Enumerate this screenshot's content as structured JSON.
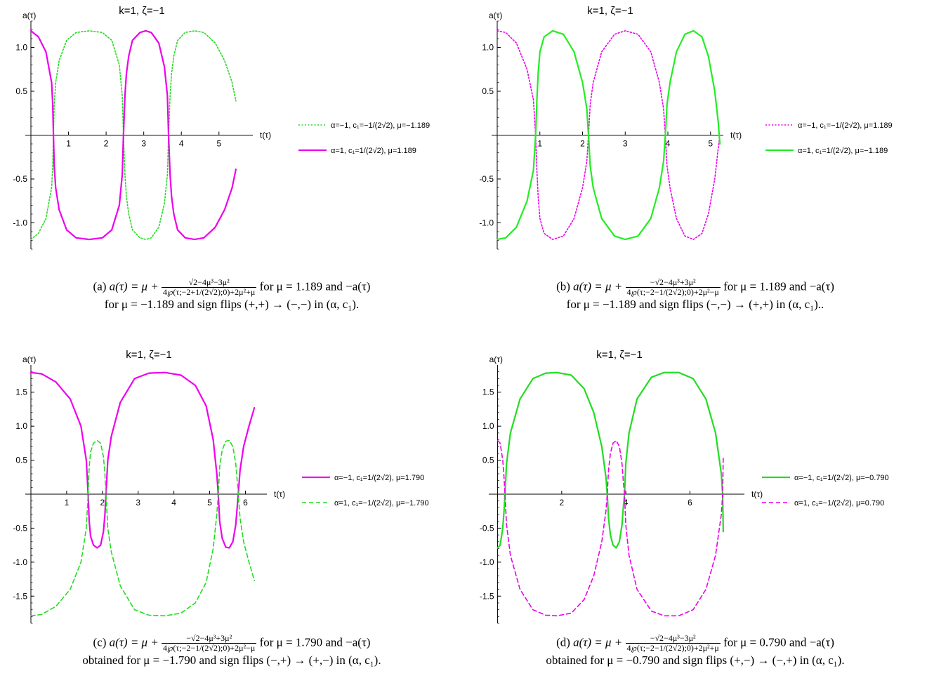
{
  "chart_data": [
    {
      "type": "line",
      "title": "k=1, ζ=−1",
      "ylabel": "a(τ)",
      "xlabel": "t(τ)",
      "xlim": [
        0,
        5.9
      ],
      "ylim": [
        -1.3,
        1.3
      ],
      "xticks": [
        "1",
        "2",
        "3",
        "4",
        "5"
      ],
      "yticks": [
        "-1.0",
        "-0.5",
        "0.5",
        "1.0"
      ],
      "ytick_values": [
        -1.0,
        -0.5,
        0.5,
        1.0
      ],
      "xtick_values": [
        1,
        2,
        3,
        4,
        5
      ],
      "series": [
        {
          "legend_text": "α=−1, c₁=−1/(2√2), μ=−1.189",
          "color": "#22dd22",
          "style": "dotted",
          "x": [
            0,
            0.2,
            0.4,
            0.55,
            0.58,
            0.6,
            0.62,
            0.66,
            0.75,
            0.95,
            1.2,
            1.55,
            1.9,
            2.15,
            2.35,
            2.43,
            2.46,
            2.5,
            2.54,
            2.6,
            2.7,
            2.9,
            3.05,
            3.2,
            3.4,
            3.55,
            3.63,
            3.66,
            3.7,
            3.74,
            3.8,
            3.9,
            4.1,
            4.35,
            4.6,
            4.9,
            5.15,
            5.35,
            5.45
          ],
          "y": [
            -1.189,
            -1.12,
            -0.95,
            -0.6,
            -0.35,
            0,
            0.35,
            0.6,
            0.85,
            1.08,
            1.17,
            1.189,
            1.17,
            1.08,
            0.8,
            0.45,
            0,
            -0.45,
            -0.7,
            -0.9,
            -1.08,
            -1.17,
            -1.189,
            -1.17,
            -1.05,
            -0.78,
            -0.45,
            0,
            0.45,
            0.7,
            0.9,
            1.08,
            1.17,
            1.189,
            1.17,
            1.05,
            0.85,
            0.6,
            0.39
          ]
        },
        {
          "legend_text": "α=1, c₁=1/(2√2), μ=1.189",
          "color": "#ee00ee",
          "style": "solid",
          "x": [
            0,
            0.2,
            0.4,
            0.55,
            0.58,
            0.6,
            0.62,
            0.66,
            0.75,
            0.95,
            1.2,
            1.55,
            1.9,
            2.15,
            2.35,
            2.43,
            2.46,
            2.5,
            2.54,
            2.6,
            2.7,
            2.9,
            3.05,
            3.2,
            3.4,
            3.55,
            3.63,
            3.66,
            3.7,
            3.74,
            3.8,
            3.9,
            4.1,
            4.35,
            4.6,
            4.9,
            5.15,
            5.35,
            5.45
          ],
          "y": [
            1.189,
            1.12,
            0.95,
            0.6,
            0.35,
            0,
            -0.35,
            -0.6,
            -0.85,
            -1.08,
            -1.17,
            -1.189,
            -1.17,
            -1.08,
            -0.8,
            -0.45,
            0,
            0.45,
            0.7,
            0.9,
            1.08,
            1.17,
            1.189,
            1.17,
            1.05,
            0.78,
            0.45,
            0,
            -0.45,
            -0.7,
            -0.9,
            -1.08,
            -1.17,
            -1.189,
            -1.17,
            -1.05,
            -0.85,
            -0.6,
            -0.39
          ]
        }
      ],
      "legend_placement": "right"
    },
    {
      "type": "line",
      "title": "k=1, ζ=−1",
      "ylabel": "a(τ)",
      "xlabel": "t(τ)",
      "xlim": [
        0,
        5.3
      ],
      "ylim": [
        -1.3,
        1.3
      ],
      "xticks": [
        "1",
        "2",
        "3",
        "4",
        "5"
      ],
      "yticks": [
        "-1.0",
        "-0.5",
        "0.5",
        "1.0"
      ],
      "ytick_values": [
        -1.0,
        -0.5,
        0.5,
        1.0
      ],
      "xtick_values": [
        1,
        2,
        3,
        4,
        5
      ],
      "series": [
        {
          "legend_text": "α=−1, c₁=−1/(2√2), μ=1.189",
          "color": "#ee00ee",
          "style": "dotted",
          "x": [
            0,
            0.2,
            0.45,
            0.7,
            0.85,
            0.9,
            0.93,
            0.96,
            1.0,
            1.1,
            1.3,
            1.55,
            1.8,
            2.0,
            2.1,
            2.14,
            2.18,
            2.25,
            2.45,
            2.75,
            3.0,
            3.3,
            3.6,
            3.8,
            3.9,
            3.94,
            3.98,
            4.05,
            4.2,
            4.4,
            4.6,
            4.8,
            4.95,
            5.1,
            5.18,
            5.22
          ],
          "y": [
            1.189,
            1.17,
            1.05,
            0.75,
            0.4,
            0,
            -0.4,
            -0.7,
            -0.95,
            -1.12,
            -1.189,
            -1.15,
            -0.95,
            -0.6,
            -0.3,
            0,
            0.35,
            0.6,
            0.95,
            1.15,
            1.189,
            1.15,
            0.95,
            0.6,
            0.3,
            0,
            -0.35,
            -0.6,
            -0.95,
            -1.15,
            -1.189,
            -1.12,
            -0.9,
            -0.5,
            -0.15,
            0
          ]
        },
        {
          "legend_text": "α=1, c₁=1/(2√2), μ=−1.189",
          "color": "#22ee22",
          "style": "solid",
          "x": [
            0,
            0.2,
            0.45,
            0.7,
            0.85,
            0.9,
            0.93,
            0.96,
            1.0,
            1.1,
            1.3,
            1.55,
            1.8,
            2.0,
            2.1,
            2.14,
            2.18,
            2.25,
            2.45,
            2.75,
            3.0,
            3.3,
            3.6,
            3.8,
            3.9,
            3.94,
            3.98,
            4.05,
            4.2,
            4.4,
            4.6,
            4.8,
            4.95,
            5.1,
            5.18,
            5.22
          ],
          "y": [
            -1.189,
            -1.17,
            -1.05,
            -0.75,
            -0.4,
            0,
            0.4,
            0.7,
            0.95,
            1.12,
            1.189,
            1.15,
            0.95,
            0.6,
            0.3,
            0,
            -0.35,
            -0.6,
            -0.95,
            -1.15,
            -1.189,
            -1.15,
            -0.95,
            -0.6,
            -0.3,
            0,
            0.35,
            0.6,
            0.95,
            1.15,
            1.189,
            1.12,
            0.9,
            0.5,
            0.15,
            -0.1
          ]
        }
      ],
      "legend_placement": "right"
    },
    {
      "type": "line",
      "title": "k=1, ζ=−1",
      "ylabel": "a(τ)",
      "xlabel": "t(τ)",
      "xlim": [
        0,
        6.6
      ],
      "ylim": [
        -1.9,
        1.9
      ],
      "xticks": [
        "1",
        "2",
        "3",
        "4",
        "5",
        "6"
      ],
      "yticks": [
        "-1.5",
        "-1.0",
        "-0.5",
        "0.5",
        "1.0",
        "1.5"
      ],
      "ytick_values": [
        -1.5,
        -1.0,
        -0.5,
        0.5,
        1.0,
        1.5
      ],
      "xtick_values": [
        1,
        2,
        3,
        4,
        5,
        6
      ],
      "series": [
        {
          "legend_text": "α=−1, c₁=1/(2√2), μ=1.790",
          "color": "#ee00ee",
          "style": "solid",
          "x": [
            0,
            0.3,
            0.7,
            1.1,
            1.4,
            1.55,
            1.6,
            1.63,
            1.67,
            1.75,
            1.85,
            1.95,
            2.03,
            2.07,
            2.1,
            2.15,
            2.25,
            2.5,
            2.9,
            3.3,
            3.75,
            4.2,
            4.6,
            4.9,
            5.1,
            5.2,
            5.24,
            5.28,
            5.35,
            5.45,
            5.55,
            5.65,
            5.73,
            5.77,
            5.8,
            5.85,
            5.95,
            6.1,
            6.25
          ],
          "y": [
            1.79,
            1.77,
            1.65,
            1.4,
            1.0,
            0.5,
            0,
            -0.4,
            -0.62,
            -0.75,
            -0.79,
            -0.75,
            -0.55,
            -0.3,
            0,
            0.5,
            0.85,
            1.35,
            1.7,
            1.78,
            1.79,
            1.75,
            1.6,
            1.3,
            0.8,
            0.3,
            0,
            -0.4,
            -0.65,
            -0.78,
            -0.79,
            -0.7,
            -0.45,
            -0.2,
            0,
            0.35,
            0.7,
            1.0,
            1.27
          ]
        },
        {
          "legend_text": "α=1, c₁=−1/(2√2), μ=−1.790",
          "color": "#22dd22",
          "style": "dashed",
          "x": [
            0,
            0.3,
            0.7,
            1.1,
            1.4,
            1.55,
            1.6,
            1.63,
            1.67,
            1.75,
            1.85,
            1.95,
            2.03,
            2.07,
            2.1,
            2.15,
            2.25,
            2.5,
            2.9,
            3.3,
            3.75,
            4.2,
            4.6,
            4.9,
            5.1,
            5.2,
            5.24,
            5.28,
            5.35,
            5.45,
            5.55,
            5.65,
            5.73,
            5.77,
            5.8,
            5.85,
            5.95,
            6.1,
            6.25
          ],
          "y": [
            -1.79,
            -1.77,
            -1.65,
            -1.4,
            -1.0,
            -0.5,
            0,
            0.4,
            0.62,
            0.75,
            0.79,
            0.75,
            0.55,
            0.3,
            0,
            -0.5,
            -0.85,
            -1.35,
            -1.7,
            -1.78,
            -1.79,
            -1.75,
            -1.6,
            -1.3,
            -0.8,
            -0.3,
            0,
            0.4,
            0.65,
            0.78,
            0.79,
            0.7,
            0.45,
            0.2,
            0,
            -0.35,
            -0.7,
            -1.0,
            -1.27
          ]
        }
      ],
      "legend_placement": "right"
    },
    {
      "type": "line",
      "title": "k=1, ζ=−1",
      "ylabel": "a(τ)",
      "xlabel": "t(τ)",
      "xlim": [
        -0.1,
        7.7
      ],
      "ylim": [
        -1.9,
        1.9
      ],
      "xticks": [
        "2",
        "4",
        "6"
      ],
      "yticks": [
        "-1.5",
        "-1.0",
        "-0.5",
        "0.5",
        "1.0",
        "1.5"
      ],
      "ytick_values": [
        -1.5,
        -1.0,
        -0.5,
        0.5,
        1.0,
        1.5
      ],
      "xtick_values": [
        2,
        4,
        6
      ],
      "series": [
        {
          "legend_text": "α=−1, c₁=1/(2√2), μ=−0.790",
          "color": "#22dd22",
          "style": "solid",
          "x": [
            0,
            0.08,
            0.16,
            0.2,
            0.23,
            0.28,
            0.4,
            0.7,
            1.1,
            1.5,
            1.85,
            2.3,
            2.7,
            3.0,
            3.25,
            3.38,
            3.42,
            3.46,
            3.52,
            3.6,
            3.7,
            3.8,
            3.88,
            3.92,
            3.96,
            4.0,
            4.1,
            4.35,
            4.8,
            5.2,
            5.65,
            6.1,
            6.5,
            6.8,
            6.98,
            7.02,
            7.04
          ],
          "y": [
            -0.79,
            -0.75,
            -0.5,
            -0.25,
            0,
            0.45,
            0.9,
            1.4,
            1.7,
            1.78,
            1.79,
            1.75,
            1.55,
            1.2,
            0.7,
            0.25,
            0,
            -0.35,
            -0.6,
            -0.75,
            -0.79,
            -0.7,
            -0.45,
            -0.2,
            0,
            0.45,
            0.9,
            1.4,
            1.72,
            1.79,
            1.79,
            1.7,
            1.4,
            0.9,
            0.3,
            0,
            -0.55
          ]
        },
        {
          "legend_text": "α=1, c₁=−1/(2√2), μ=0.790",
          "color": "#ee00ee",
          "style": "dashed",
          "x": [
            0,
            0.08,
            0.16,
            0.2,
            0.23,
            0.28,
            0.4,
            0.7,
            1.1,
            1.5,
            1.85,
            2.3,
            2.7,
            3.0,
            3.25,
            3.38,
            3.42,
            3.46,
            3.52,
            3.6,
            3.7,
            3.8,
            3.88,
            3.92,
            3.96,
            4.0,
            4.1,
            4.35,
            4.8,
            5.2,
            5.65,
            6.1,
            6.5,
            6.8,
            6.98,
            7.02,
            7.04
          ],
          "y": [
            0.79,
            0.75,
            0.5,
            0.25,
            0,
            -0.45,
            -0.9,
            -1.4,
            -1.7,
            -1.78,
            -1.79,
            -1.75,
            -1.55,
            -1.2,
            -0.7,
            -0.25,
            0,
            0.35,
            0.6,
            0.75,
            0.79,
            0.7,
            0.45,
            0.2,
            0,
            -0.45,
            -0.9,
            -1.4,
            -1.72,
            -1.79,
            -1.79,
            -1.7,
            -1.4,
            -0.9,
            -0.3,
            0,
            0.55
          ]
        }
      ],
      "legend_placement": "right"
    }
  ],
  "captions": [
    {
      "label": "(a)",
      "lhs": "a(τ) = μ +",
      "num": "√2−4μ³−3μ²",
      "den": "4℘(τ;−2+1/(2√2);0)+2μ²+μ",
      "after": "for μ = 1.189 and −a(τ)",
      "line2": "for μ = −1.189 and sign flips (+,+) → (−,−) in (α, c₁)."
    },
    {
      "label": "(b)",
      "lhs": "a(τ) = μ +",
      "num": "−√2−4μ³+3μ²",
      "den": "4℘(τ;−2−1/(2√2);0)+2μ²−μ",
      "after": "for μ = 1.189 and −a(τ)",
      "line2": "for μ = −1.189 and sign flips (−,−) → (+,+) in (α, c₁).."
    },
    {
      "label": "(c)",
      "lhs": "a(τ) = μ +",
      "num": "−√2−4μ³+3μ²",
      "den": "4℘(τ;−2−1/(2√2);0)+2μ²−μ",
      "after": "for μ = 1.790 and −a(τ)",
      "line2": "obtained for μ = −1.790 and sign flips (−,+) → (+,−) in (α, c₁)."
    },
    {
      "label": "(d)",
      "lhs": "a(τ) = μ +",
      "num": "−√2−4μ³−3μ²",
      "den": "4℘(τ;−2−1/(2√2);0)+2μ²+μ",
      "after": "for μ = 0.790 and −a(τ)",
      "line2": "obtained for μ = −0.790 and sign flips (+,−) → (−,+) in (α, c₁)."
    }
  ]
}
